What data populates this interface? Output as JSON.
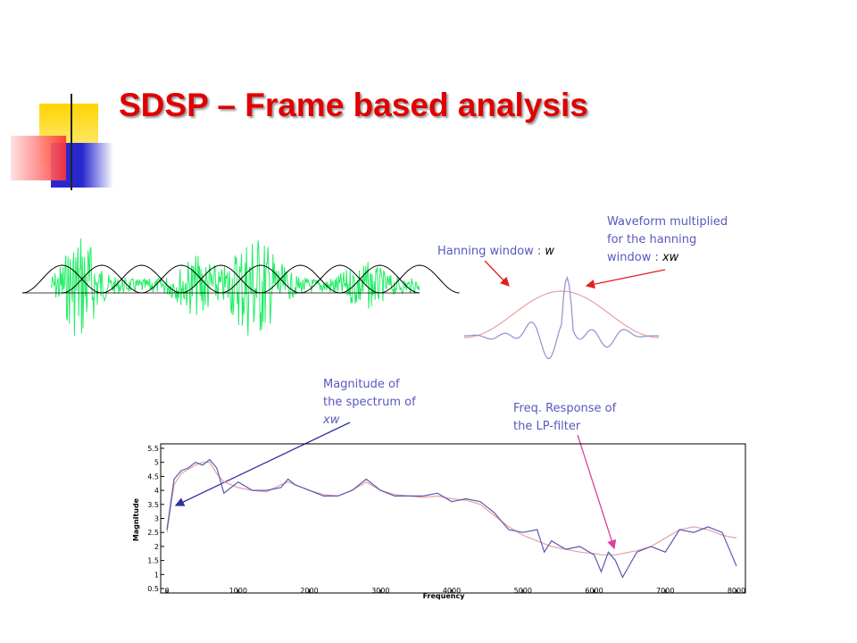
{
  "title": {
    "bold": "SDSP –",
    "rest": "Frame based analysis"
  },
  "annotations": {
    "hanning": {
      "text": "Hanning window : ",
      "var": "w"
    },
    "waveform": {
      "lines": [
        "Waveform multiplied",
        "for the hanning",
        "window : "
      ],
      "var": "xw"
    },
    "magnitude": {
      "lines": [
        "Magnitude of",
        "the spectrum of"
      ],
      "var": "xw"
    },
    "filter": {
      "lines": [
        "Freq. Response of",
        "the LP-filter"
      ]
    }
  },
  "chart_data": {
    "type": "line",
    "xlabel": "Frequency",
    "ylabel": "Magnitude",
    "x": [
      0,
      100,
      200,
      300,
      400,
      500,
      600,
      700,
      800,
      900,
      1000,
      1200,
      1400,
      1600,
      1700,
      1800,
      2000,
      2200,
      2400,
      2600,
      2800,
      3000,
      3200,
      3400,
      3600,
      3800,
      4000,
      4200,
      4400,
      4600,
      4800,
      5000,
      5200,
      5300,
      5400,
      5600,
      5800,
      6000,
      6100,
      6200,
      6300,
      6400,
      6600,
      6800,
      7000,
      7200,
      7400,
      7600,
      7800,
      8000
    ],
    "series": [
      {
        "color": "#5a5ab4",
        "values": [
          2.6,
          4.4,
          4.7,
          4.8,
          5.0,
          4.9,
          5.1,
          4.8,
          3.9,
          4.1,
          4.3,
          4.0,
          4.0,
          4.1,
          4.4,
          4.2,
          4.0,
          3.8,
          3.8,
          4.0,
          4.4,
          4.0,
          3.8,
          3.8,
          3.8,
          3.9,
          3.6,
          3.7,
          3.6,
          3.2,
          2.6,
          2.5,
          2.6,
          1.8,
          2.2,
          1.9,
          2.0,
          1.7,
          1.1,
          1.8,
          1.5,
          0.9,
          1.8,
          2.0,
          1.8,
          2.6,
          2.5,
          2.7,
          2.5,
          1.3
        ]
      },
      {
        "color": "#e8a0a0",
        "values": [
          2.5,
          4.2,
          4.6,
          4.75,
          4.9,
          5.0,
          5.0,
          4.6,
          4.3,
          4.2,
          4.1,
          4.0,
          3.95,
          4.2,
          4.3,
          4.2,
          4.0,
          3.85,
          3.8,
          4.0,
          4.3,
          4.0,
          3.85,
          3.8,
          3.75,
          3.8,
          3.7,
          3.65,
          3.5,
          3.1,
          2.7,
          2.4,
          2.2,
          2.1,
          2.0,
          1.9,
          1.8,
          1.75,
          1.7,
          1.7,
          1.7,
          1.75,
          1.85,
          2.0,
          2.3,
          2.6,
          2.7,
          2.6,
          2.4,
          2.3
        ]
      }
    ],
    "xlim": [
      0,
      8000
    ],
    "xticks": [
      0,
      1000,
      2000,
      3000,
      4000,
      5000,
      6000,
      7000,
      8000
    ],
    "ylim": [
      0.5,
      5.5
    ],
    "yticks": [
      0.5,
      1,
      1.5,
      2,
      2.5,
      3,
      3.5,
      4,
      4.5,
      5,
      5.5
    ]
  }
}
